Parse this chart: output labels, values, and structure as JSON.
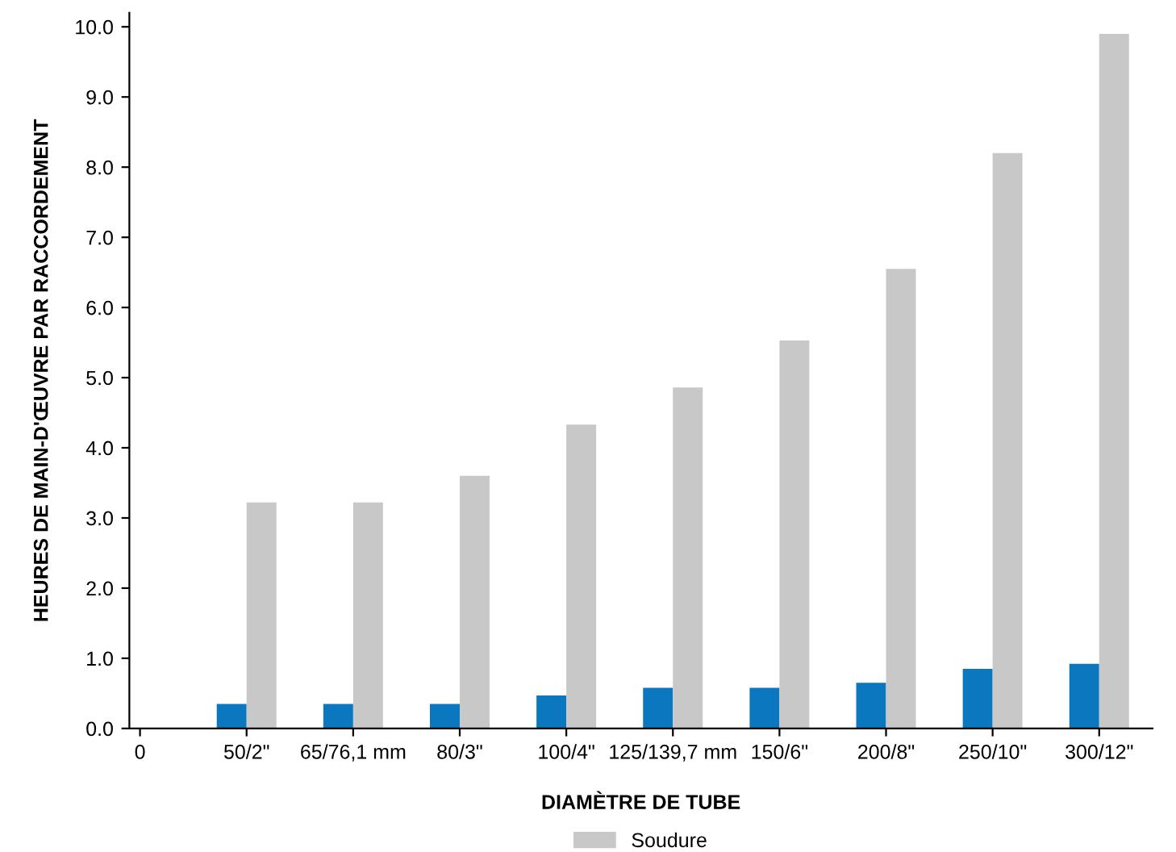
{
  "chart_data": {
    "type": "bar",
    "xlabel": "DIAMÈTRE DE TUBE",
    "ylabel": "HEURES DE MAIN-D'ŒUVRE PAR RACCORDEMENT",
    "categories": [
      "0",
      "50/2\"",
      "65/76,1 mm",
      "80/3\"",
      "100/4\"",
      "125/139,7 mm",
      "150/6\"",
      "200/8\"",
      "250/10\"",
      "300/12\""
    ],
    "series": [
      {
        "color": "#0a77bf",
        "values": [
          null,
          0.35,
          0.35,
          0.35,
          0.47,
          0.58,
          0.58,
          0.65,
          0.85,
          0.92
        ]
      },
      {
        "name": "Soudure",
        "color": "#c8c8c8",
        "values": [
          null,
          3.22,
          3.22,
          3.6,
          4.33,
          4.86,
          5.53,
          6.55,
          8.2,
          9.9
        ]
      }
    ],
    "ylim": [
      0,
      10.2
    ],
    "yticks": [
      {
        "value": 0,
        "label": "0.0"
      },
      {
        "value": 1,
        "label": "1.0"
      },
      {
        "value": 2,
        "label": "2.0"
      },
      {
        "value": 3,
        "label": "3.0"
      },
      {
        "value": 4,
        "label": "4.0"
      },
      {
        "value": 5,
        "label": "5.0"
      },
      {
        "value": 6,
        "label": "6.0"
      },
      {
        "value": 7,
        "label": "7.0"
      },
      {
        "value": 8,
        "label": "8.0"
      },
      {
        "value": 9,
        "label": "9.0"
      },
      {
        "value": 10,
        "label": "10.0"
      }
    ],
    "grid": false,
    "legend": "bottom"
  }
}
